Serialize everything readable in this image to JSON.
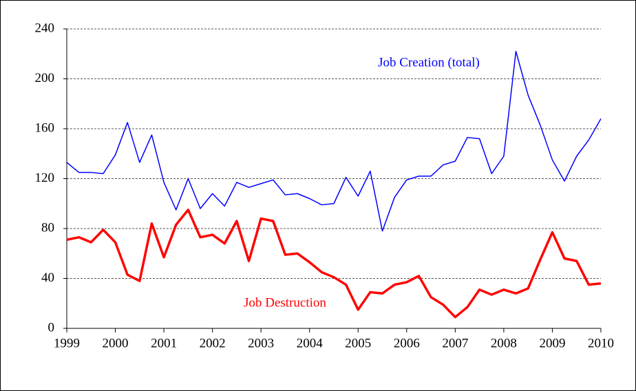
{
  "chart_data": {
    "type": "line",
    "x": [
      1999,
      1999.25,
      1999.5,
      1999.75,
      2000,
      2000.25,
      2000.5,
      2000.75,
      2001,
      2001.25,
      2001.5,
      2001.75,
      2002,
      2002.25,
      2002.5,
      2002.75,
      2003,
      2003.25,
      2003.5,
      2003.75,
      2004,
      2004.25,
      2004.5,
      2004.75,
      2005,
      2005.25,
      2005.5,
      2005.75,
      2006,
      2006.25,
      2006.5,
      2006.75,
      2007,
      2007.25,
      2007.5,
      2007.75,
      2008,
      2008.25,
      2008.5,
      2008.75,
      2009,
      2009.25,
      2009.5,
      2009.75,
      2010
    ],
    "series": [
      {
        "name": "Job Creation (total)",
        "color": "#0000ff",
        "width": 1.5,
        "values": [
          133,
          125,
          125,
          124,
          139,
          165,
          133,
          155,
          117,
          95,
          120,
          96,
          108,
          98,
          117,
          113,
          116,
          119,
          107,
          108,
          104,
          99,
          100,
          121,
          106,
          126,
          78,
          105,
          119,
          122,
          122,
          131,
          134,
          153,
          152,
          124,
          138,
          222,
          187,
          163,
          135,
          118,
          138,
          151,
          168
        ]
      },
      {
        "name": "Job Destruction",
        "color": "#ff0000",
        "width": 3.5,
        "values": [
          71,
          73,
          69,
          79,
          69,
          43,
          38,
          84,
          57,
          83,
          95,
          73,
          75,
          68,
          86,
          54,
          88,
          86,
          59,
          60,
          53,
          45,
          41,
          35,
          15,
          29,
          28,
          35,
          37,
          42,
          25,
          19,
          9,
          17,
          31,
          27,
          31,
          28,
          32,
          55,
          77,
          56,
          54,
          35,
          36
        ]
      }
    ],
    "xlim": [
      1999,
      2010
    ],
    "xticks": [
      1999,
      2000,
      2001,
      2002,
      2003,
      2004,
      2005,
      2006,
      2007,
      2008,
      2009,
      2010
    ],
    "ylim": [
      0,
      240
    ],
    "yticks": [
      0,
      40,
      80,
      120,
      160,
      200,
      240
    ],
    "grid": true
  }
}
